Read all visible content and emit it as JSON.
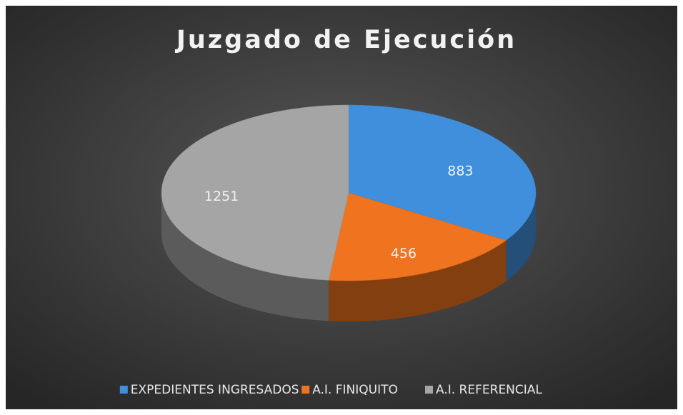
{
  "chart_data": {
    "type": "pie",
    "title": "Juzgado de Ejecución",
    "categories": [
      "EXPEDIENTES INGRESADOS",
      "A.I. FINIQUITO",
      "A.I. REFERENCIAL"
    ],
    "values": [
      883,
      456,
      1251
    ],
    "colors": [
      "#3f8fdc",
      "#f0731f",
      "#a5a5a5"
    ],
    "legend": "bottom"
  }
}
